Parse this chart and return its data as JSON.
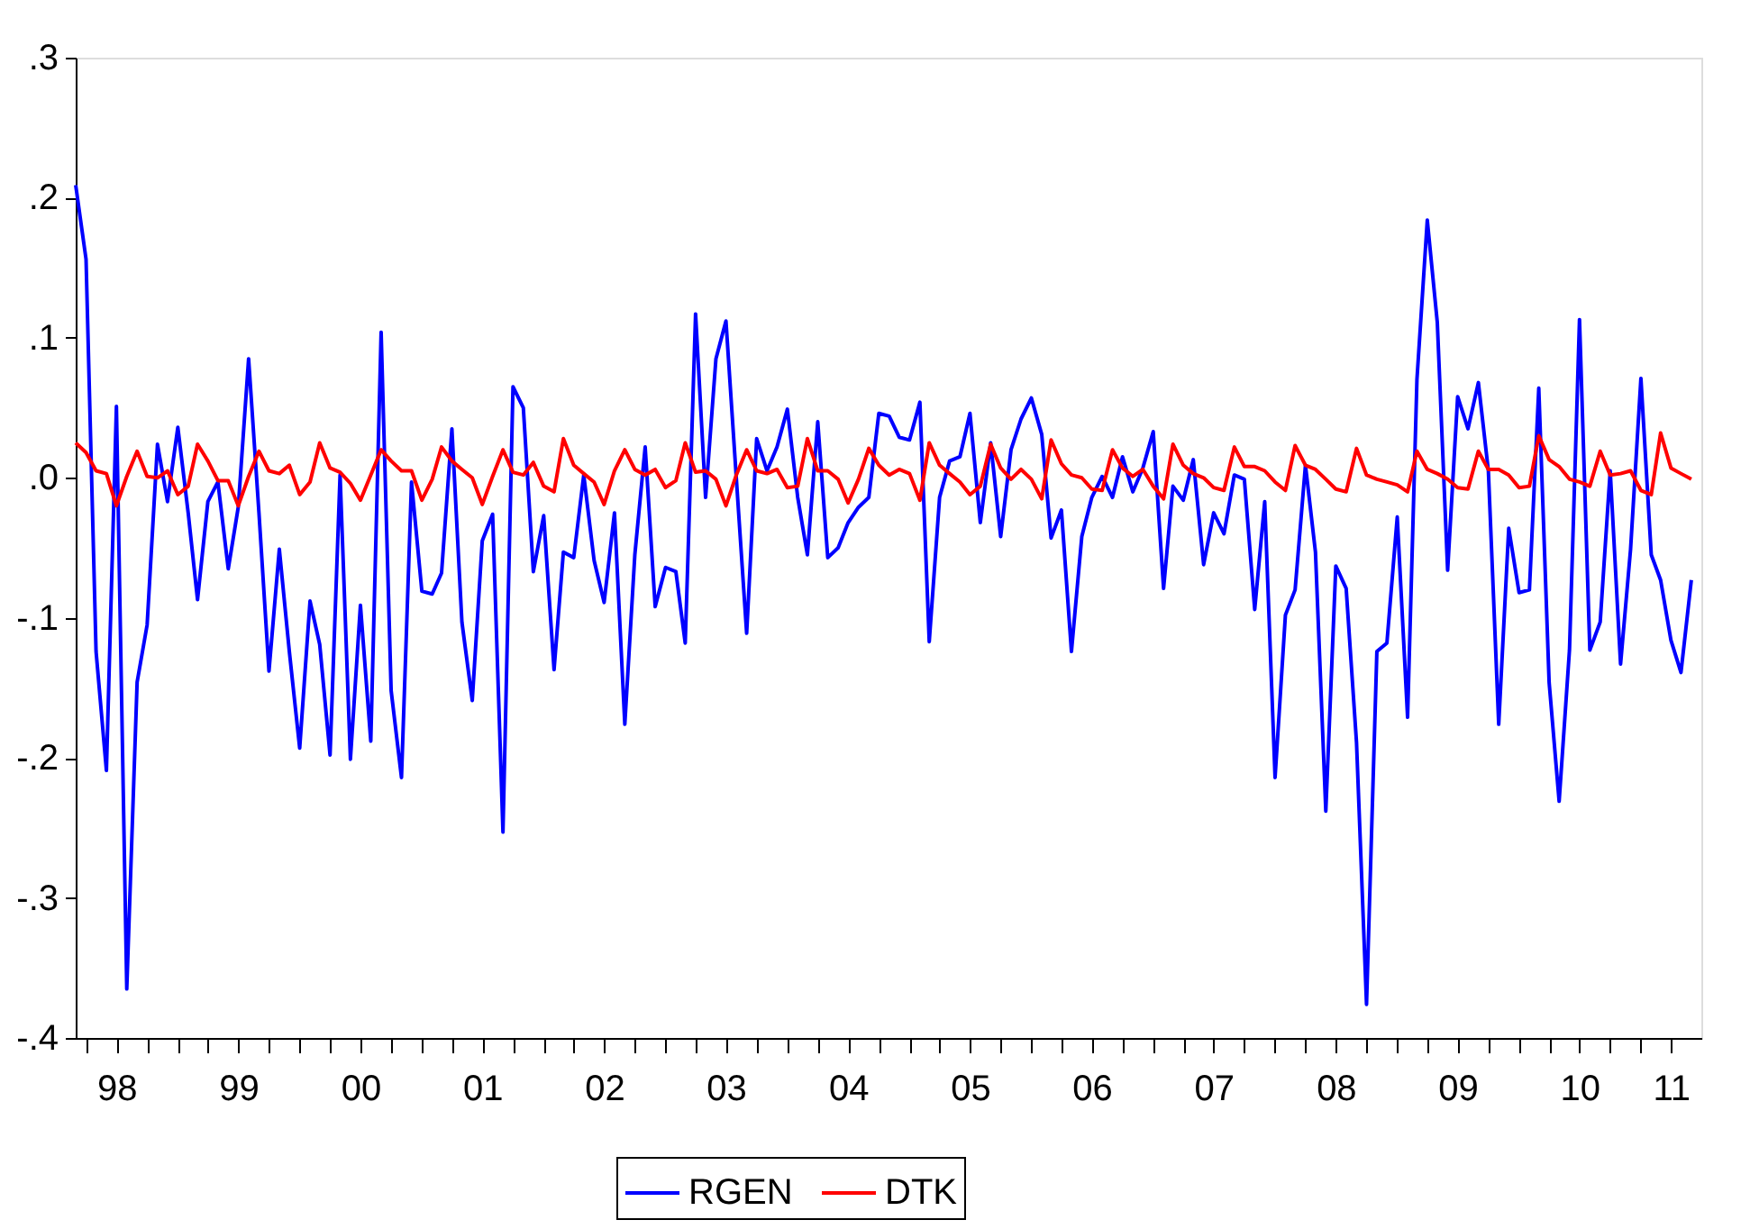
{
  "chart_data": {
    "type": "line",
    "x": [
      "1998-03",
      "1998-04",
      "1998-05",
      "1998-06",
      "1998-07",
      "1998-08",
      "1998-09",
      "1998-10",
      "1998-11",
      "1998-12",
      "1999-01",
      "1999-02",
      "1999-03",
      "1999-04",
      "1999-05",
      "1999-06",
      "1999-07",
      "1999-08",
      "1999-09",
      "1999-10",
      "1999-11",
      "1999-12",
      "2000-01",
      "2000-02",
      "2000-03",
      "2000-04",
      "2000-05",
      "2000-06",
      "2000-07",
      "2000-08",
      "2000-09",
      "2000-10",
      "2000-11",
      "2000-12",
      "2001-01",
      "2001-02",
      "2001-03",
      "2001-04",
      "2001-05",
      "2001-06",
      "2001-07",
      "2001-08",
      "2001-09",
      "2001-10",
      "2001-11",
      "2001-12",
      "2002-01",
      "2002-02",
      "2002-03",
      "2002-04",
      "2002-05",
      "2002-06",
      "2002-07",
      "2002-08",
      "2002-09",
      "2002-10",
      "2002-11",
      "2002-12",
      "2003-01",
      "2003-02",
      "2003-03",
      "2003-04",
      "2003-05",
      "2003-06",
      "2003-07",
      "2003-08",
      "2003-09",
      "2003-10",
      "2003-11",
      "2003-12",
      "2004-01",
      "2004-02",
      "2004-03",
      "2004-04",
      "2004-05",
      "2004-06",
      "2004-07",
      "2004-08",
      "2004-09",
      "2004-10",
      "2004-11",
      "2004-12",
      "2005-01",
      "2005-02",
      "2005-03",
      "2005-04",
      "2005-05",
      "2005-06",
      "2005-07",
      "2005-08",
      "2005-09",
      "2005-10",
      "2005-11",
      "2005-12",
      "2006-01",
      "2006-02",
      "2006-03",
      "2006-04",
      "2006-05",
      "2006-06",
      "2006-07",
      "2006-08",
      "2006-09",
      "2006-10",
      "2006-11",
      "2006-12",
      "2007-01",
      "2007-02",
      "2007-03",
      "2007-04",
      "2007-05",
      "2007-06",
      "2007-07",
      "2007-08",
      "2007-09",
      "2007-10",
      "2007-11",
      "2007-12",
      "2008-01",
      "2008-02",
      "2008-03",
      "2008-04",
      "2008-05",
      "2008-06",
      "2008-07",
      "2008-08",
      "2008-09",
      "2008-10",
      "2008-11",
      "2008-12",
      "2009-01",
      "2009-02",
      "2009-03",
      "2009-04",
      "2009-05",
      "2009-06",
      "2009-07",
      "2009-08",
      "2009-09",
      "2009-10",
      "2009-11",
      "2009-12",
      "2010-01",
      "2010-02",
      "2010-03",
      "2010-04",
      "2010-05",
      "2010-06",
      "2010-07",
      "2010-08",
      "2010-09",
      "2010-10",
      "2010-11",
      "2010-12",
      "2011-01",
      "2011-02",
      "2011-03",
      "2011-04",
      "2011-05",
      "2011-06"
    ],
    "series": [
      {
        "name": "RGEN",
        "color": "#0000ff",
        "values": [
          0.209,
          0.156,
          -0.124,
          -0.209,
          0.051,
          -0.365,
          -0.146,
          -0.105,
          0.024,
          -0.017,
          0.036,
          -0.025,
          -0.087,
          -0.017,
          -0.003,
          -0.065,
          -0.021,
          0.085,
          -0.025,
          -0.138,
          -0.051,
          -0.124,
          -0.193,
          -0.088,
          -0.119,
          -0.198,
          0.002,
          -0.201,
          -0.091,
          -0.188,
          0.104,
          -0.152,
          -0.214,
          -0.003,
          -0.081,
          -0.083,
          -0.068,
          0.035,
          -0.103,
          -0.159,
          -0.045,
          -0.026,
          -0.253,
          0.065,
          0.05,
          -0.067,
          -0.027,
          -0.137,
          -0.053,
          -0.057,
          0.002,
          -0.059,
          -0.089,
          -0.025,
          -0.176,
          -0.055,
          0.022,
          -0.092,
          -0.064,
          -0.067,
          -0.118,
          0.117,
          -0.014,
          0.085,
          0.112,
          0.0,
          -0.111,
          0.028,
          0.005,
          0.022,
          0.049,
          -0.014,
          -0.055,
          0.04,
          -0.057,
          -0.05,
          -0.032,
          -0.021,
          -0.014,
          0.046,
          0.044,
          0.029,
          0.027,
          0.054,
          -0.117,
          -0.014,
          0.012,
          0.015,
          0.046,
          -0.032,
          0.025,
          -0.042,
          0.02,
          0.042,
          0.057,
          0.031,
          -0.043,
          -0.023,
          -0.124,
          -0.042,
          -0.014,
          0.001,
          -0.014,
          0.015,
          -0.01,
          0.007,
          0.033,
          -0.079,
          -0.006,
          -0.016,
          0.013,
          -0.062,
          -0.025,
          -0.04,
          0.002,
          -0.001,
          -0.094,
          -0.017,
          -0.214,
          -0.098,
          -0.08,
          0.009,
          -0.053,
          -0.238,
          -0.063,
          -0.079,
          -0.189,
          -0.376,
          -0.124,
          -0.118,
          -0.028,
          -0.171,
          0.07,
          0.184,
          0.111,
          -0.066,
          0.058,
          0.035,
          0.068,
          0.005,
          -0.176,
          -0.036,
          -0.082,
          -0.08,
          0.064,
          -0.146,
          -0.231,
          -0.123,
          0.113,
          -0.123,
          -0.103,
          0.005,
          -0.133,
          -0.051,
          0.071,
          -0.055,
          -0.073,
          -0.116,
          -0.139,
          -0.073
        ]
      },
      {
        "name": "DTK",
        "color": "#ff0000",
        "values": [
          0.025,
          0.018,
          0.005,
          0.003,
          -0.02,
          0.001,
          0.019,
          0.001,
          0.0,
          0.005,
          -0.012,
          -0.006,
          0.024,
          0.012,
          -0.002,
          -0.002,
          -0.02,
          0.001,
          0.019,
          0.005,
          0.003,
          0.009,
          -0.012,
          -0.003,
          0.025,
          0.007,
          0.004,
          -0.004,
          -0.016,
          0.002,
          0.02,
          0.012,
          0.005,
          0.005,
          -0.016,
          -0.001,
          0.022,
          0.012,
          0.006,
          0.0,
          -0.019,
          0.001,
          0.02,
          0.004,
          0.002,
          0.011,
          -0.006,
          -0.01,
          0.028,
          0.009,
          0.003,
          -0.003,
          -0.019,
          0.005,
          0.02,
          0.006,
          0.002,
          0.006,
          -0.007,
          -0.002,
          0.025,
          0.004,
          0.005,
          -0.001,
          -0.02,
          0.002,
          0.02,
          0.005,
          0.003,
          0.006,
          -0.007,
          -0.006,
          0.028,
          0.005,
          0.005,
          -0.001,
          -0.018,
          -0.001,
          0.021,
          0.009,
          0.002,
          0.006,
          0.003,
          -0.016,
          0.025,
          0.009,
          0.003,
          -0.003,
          -0.012,
          -0.006,
          0.024,
          0.007,
          -0.001,
          0.006,
          -0.001,
          -0.015,
          0.027,
          0.01,
          0.002,
          0.0,
          -0.008,
          -0.009,
          0.02,
          0.007,
          0.001,
          0.006,
          -0.006,
          -0.015,
          0.024,
          0.009,
          0.003,
          0.0,
          -0.007,
          -0.009,
          0.022,
          0.008,
          0.008,
          0.005,
          -0.003,
          -0.009,
          0.023,
          0.009,
          0.006,
          -0.001,
          -0.008,
          -0.01,
          0.021,
          0.002,
          -0.001,
          -0.003,
          -0.005,
          -0.01,
          0.019,
          0.006,
          0.003,
          -0.001,
          -0.007,
          -0.008,
          0.019,
          0.006,
          0.006,
          0.002,
          -0.007,
          -0.006,
          0.03,
          0.013,
          0.008,
          -0.001,
          -0.003,
          -0.006,
          0.019,
          0.002,
          0.003,
          0.005,
          -0.009,
          -0.012,
          0.032,
          0.007,
          0.003,
          -0.001
        ]
      }
    ],
    "xlim": [
      "1998-03",
      "2011-07"
    ],
    "xticks": [
      {
        "value": "1998-04",
        "label": null
      },
      {
        "value": "1998-07",
        "label": "98"
      },
      {
        "value": "1998-10",
        "label": null
      },
      {
        "value": "1999-01",
        "label": null
      },
      {
        "value": "1999-04",
        "label": null
      },
      {
        "value": "1999-07",
        "label": "99"
      },
      {
        "value": "1999-10",
        "label": null
      },
      {
        "value": "2000-01",
        "label": null
      },
      {
        "value": "2000-04",
        "label": null
      },
      {
        "value": "2000-07",
        "label": "00"
      },
      {
        "value": "2000-10",
        "label": null
      },
      {
        "value": "2001-01",
        "label": null
      },
      {
        "value": "2001-04",
        "label": null
      },
      {
        "value": "2001-07",
        "label": "01"
      },
      {
        "value": "2001-10",
        "label": null
      },
      {
        "value": "2002-01",
        "label": null
      },
      {
        "value": "2002-04",
        "label": null
      },
      {
        "value": "2002-07",
        "label": "02"
      },
      {
        "value": "2002-10",
        "label": null
      },
      {
        "value": "2003-01",
        "label": null
      },
      {
        "value": "2003-04",
        "label": null
      },
      {
        "value": "2003-07",
        "label": "03"
      },
      {
        "value": "2003-10",
        "label": null
      },
      {
        "value": "2004-01",
        "label": null
      },
      {
        "value": "2004-04",
        "label": null
      },
      {
        "value": "2004-07",
        "label": "04"
      },
      {
        "value": "2004-10",
        "label": null
      },
      {
        "value": "2005-01",
        "label": null
      },
      {
        "value": "2005-04",
        "label": null
      },
      {
        "value": "2005-07",
        "label": "05"
      },
      {
        "value": "2005-10",
        "label": null
      },
      {
        "value": "2006-01",
        "label": null
      },
      {
        "value": "2006-04",
        "label": null
      },
      {
        "value": "2006-07",
        "label": "06"
      },
      {
        "value": "2006-10",
        "label": null
      },
      {
        "value": "2007-01",
        "label": null
      },
      {
        "value": "2007-04",
        "label": null
      },
      {
        "value": "2007-07",
        "label": "07"
      },
      {
        "value": "2007-10",
        "label": null
      },
      {
        "value": "2008-01",
        "label": null
      },
      {
        "value": "2008-04",
        "label": null
      },
      {
        "value": "2008-07",
        "label": "08"
      },
      {
        "value": "2008-10",
        "label": null
      },
      {
        "value": "2009-01",
        "label": null
      },
      {
        "value": "2009-04",
        "label": null
      },
      {
        "value": "2009-07",
        "label": "09"
      },
      {
        "value": "2009-10",
        "label": null
      },
      {
        "value": "2010-01",
        "label": null
      },
      {
        "value": "2010-04",
        "label": null
      },
      {
        "value": "2010-07",
        "label": "10"
      },
      {
        "value": "2010-10",
        "label": null
      },
      {
        "value": "2011-01",
        "label": null
      },
      {
        "value": "2011-04",
        "label": "11"
      }
    ],
    "ylim": [
      -0.4,
      0.3
    ],
    "yticks": [
      {
        "value": -0.4,
        "label": "-.4"
      },
      {
        "value": -0.3,
        "label": "-.3"
      },
      {
        "value": -0.2,
        "label": "-.2"
      },
      {
        "value": -0.1,
        "label": "-.1"
      },
      {
        "value": 0,
        "label": ".0"
      },
      {
        "value": 0.1,
        "label": ".1"
      },
      {
        "value": 0.2,
        "label": ".2"
      },
      {
        "value": 0.3,
        "label": ".3"
      }
    ],
    "legend": "bottom"
  }
}
